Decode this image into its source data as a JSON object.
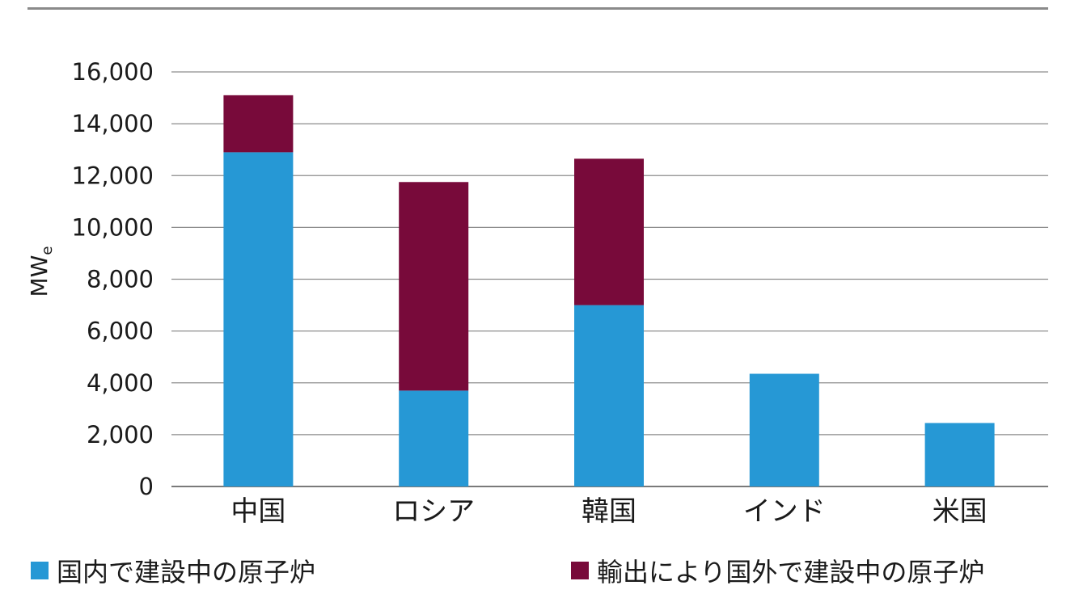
{
  "chart_data": {
    "type": "bar",
    "stacked": true,
    "categories": [
      "中国",
      "ロシア",
      "韓国",
      "インド",
      "米国"
    ],
    "series": [
      {
        "name": "国内で建設中の原子炉",
        "color": "#2698d5",
        "values": [
          12900,
          3700,
          7000,
          4350,
          2450
        ]
      },
      {
        "name": "輸出により国外で建設中の原子炉",
        "color": "#780a3a",
        "values": [
          2200,
          8050,
          5650,
          0,
          0
        ]
      }
    ],
    "ylabel": "MWe",
    "ylabel_main": "MW",
    "ylabel_sub": "e",
    "ylim": [
      0,
      16000
    ],
    "yticks": [
      0,
      2000,
      4000,
      6000,
      8000,
      10000,
      12000,
      14000,
      16000
    ],
    "ytick_labels": [
      "0",
      "2,000",
      "4,000",
      "6,000",
      "8,000",
      "10,000",
      "12,000",
      "14,000",
      "16,000"
    ],
    "grid": true,
    "legend_position": "bottom"
  },
  "legend": {
    "domestic": "国内で建設中の原子炉",
    "export": "輸出により国外で建設中の原子炉"
  }
}
